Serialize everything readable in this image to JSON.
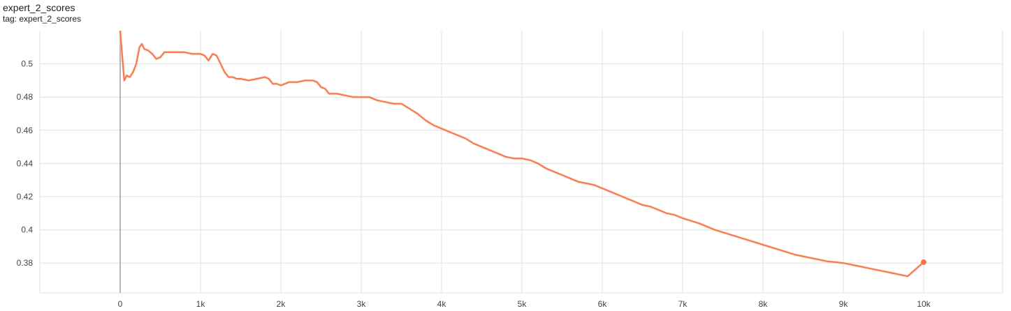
{
  "header": {
    "title": "expert_2_scores",
    "tag": "tag: expert_2_scores"
  },
  "chart_data": {
    "type": "line",
    "title": "expert_2_scores",
    "xlabel": "",
    "ylabel": "",
    "xlim": [
      -1000,
      10000
    ],
    "ylim": [
      0.362,
      0.52
    ],
    "x_ticks": [
      0,
      1000,
      2000,
      3000,
      4000,
      5000,
      6000,
      7000,
      8000,
      9000,
      10000
    ],
    "x_tick_labels": [
      "0",
      "1k",
      "2k",
      "3k",
      "4k",
      "5k",
      "6k",
      "7k",
      "8k",
      "9k",
      "10k"
    ],
    "y_ticks": [
      0.38,
      0.4,
      0.42,
      0.44,
      0.46,
      0.48,
      0.5
    ],
    "y_tick_labels": [
      "0.38",
      "0.4",
      "0.42",
      "0.44",
      "0.46",
      "0.48",
      "0.5"
    ],
    "grid": true,
    "colors": {
      "line": "#f4764b",
      "raw": "#fbcdb8",
      "grid": "#e0e0e0",
      "zero_axis": "#9e9e9e"
    },
    "series": [
      {
        "x": [
          0,
          20,
          50,
          80,
          120,
          160,
          200,
          240,
          270,
          300,
          350,
          400,
          450,
          500,
          550,
          600,
          650,
          700,
          800,
          900,
          1000,
          1050,
          1100,
          1150,
          1200,
          1250,
          1300,
          1350,
          1400,
          1450,
          1500,
          1600,
          1700,
          1800,
          1850,
          1900,
          1950,
          2000,
          2050,
          2100,
          2150,
          2200,
          2300,
          2400,
          2450,
          2500,
          2550,
          2600,
          2700,
          2800,
          2900,
          3000,
          3100,
          3200,
          3300,
          3400,
          3500,
          3600,
          3700,
          3800,
          3900,
          4000,
          4100,
          4200,
          4300,
          4400,
          4500,
          4600,
          4700,
          4800,
          4900,
          5000,
          5100,
          5200,
          5300,
          5400,
          5500,
          5600,
          5700,
          5800,
          5900,
          6000,
          6100,
          6200,
          6300,
          6400,
          6500,
          6600,
          6700,
          6800,
          6900,
          7000,
          7200,
          7400,
          7600,
          7800,
          8000,
          8200,
          8400,
          8600,
          8800,
          9000,
          9200,
          9400,
          9600,
          9800,
          10000
        ],
        "y": [
          0.52,
          0.508,
          0.49,
          0.493,
          0.492,
          0.495,
          0.5,
          0.51,
          0.512,
          0.509,
          0.508,
          0.506,
          0.503,
          0.504,
          0.507,
          0.507,
          0.507,
          0.507,
          0.507,
          0.506,
          0.506,
          0.505,
          0.502,
          0.506,
          0.505,
          0.5,
          0.495,
          0.492,
          0.492,
          0.491,
          0.491,
          0.49,
          0.491,
          0.492,
          0.491,
          0.488,
          0.488,
          0.487,
          0.488,
          0.489,
          0.489,
          0.489,
          0.49,
          0.49,
          0.489,
          0.486,
          0.485,
          0.482,
          0.482,
          0.481,
          0.48,
          0.48,
          0.48,
          0.478,
          0.477,
          0.476,
          0.476,
          0.473,
          0.47,
          0.466,
          0.463,
          0.461,
          0.459,
          0.457,
          0.455,
          0.452,
          0.45,
          0.448,
          0.446,
          0.444,
          0.443,
          0.443,
          0.442,
          0.44,
          0.437,
          0.435,
          0.433,
          0.431,
          0.429,
          0.428,
          0.427,
          0.425,
          0.423,
          0.421,
          0.419,
          0.417,
          0.415,
          0.414,
          0.412,
          0.41,
          0.409,
          0.407,
          0.404,
          0.4,
          0.397,
          0.394,
          0.391,
          0.388,
          0.385,
          0.383,
          0.381,
          0.38,
          0.378,
          0.376,
          0.374,
          0.372,
          0.3805
        ]
      }
    ]
  }
}
